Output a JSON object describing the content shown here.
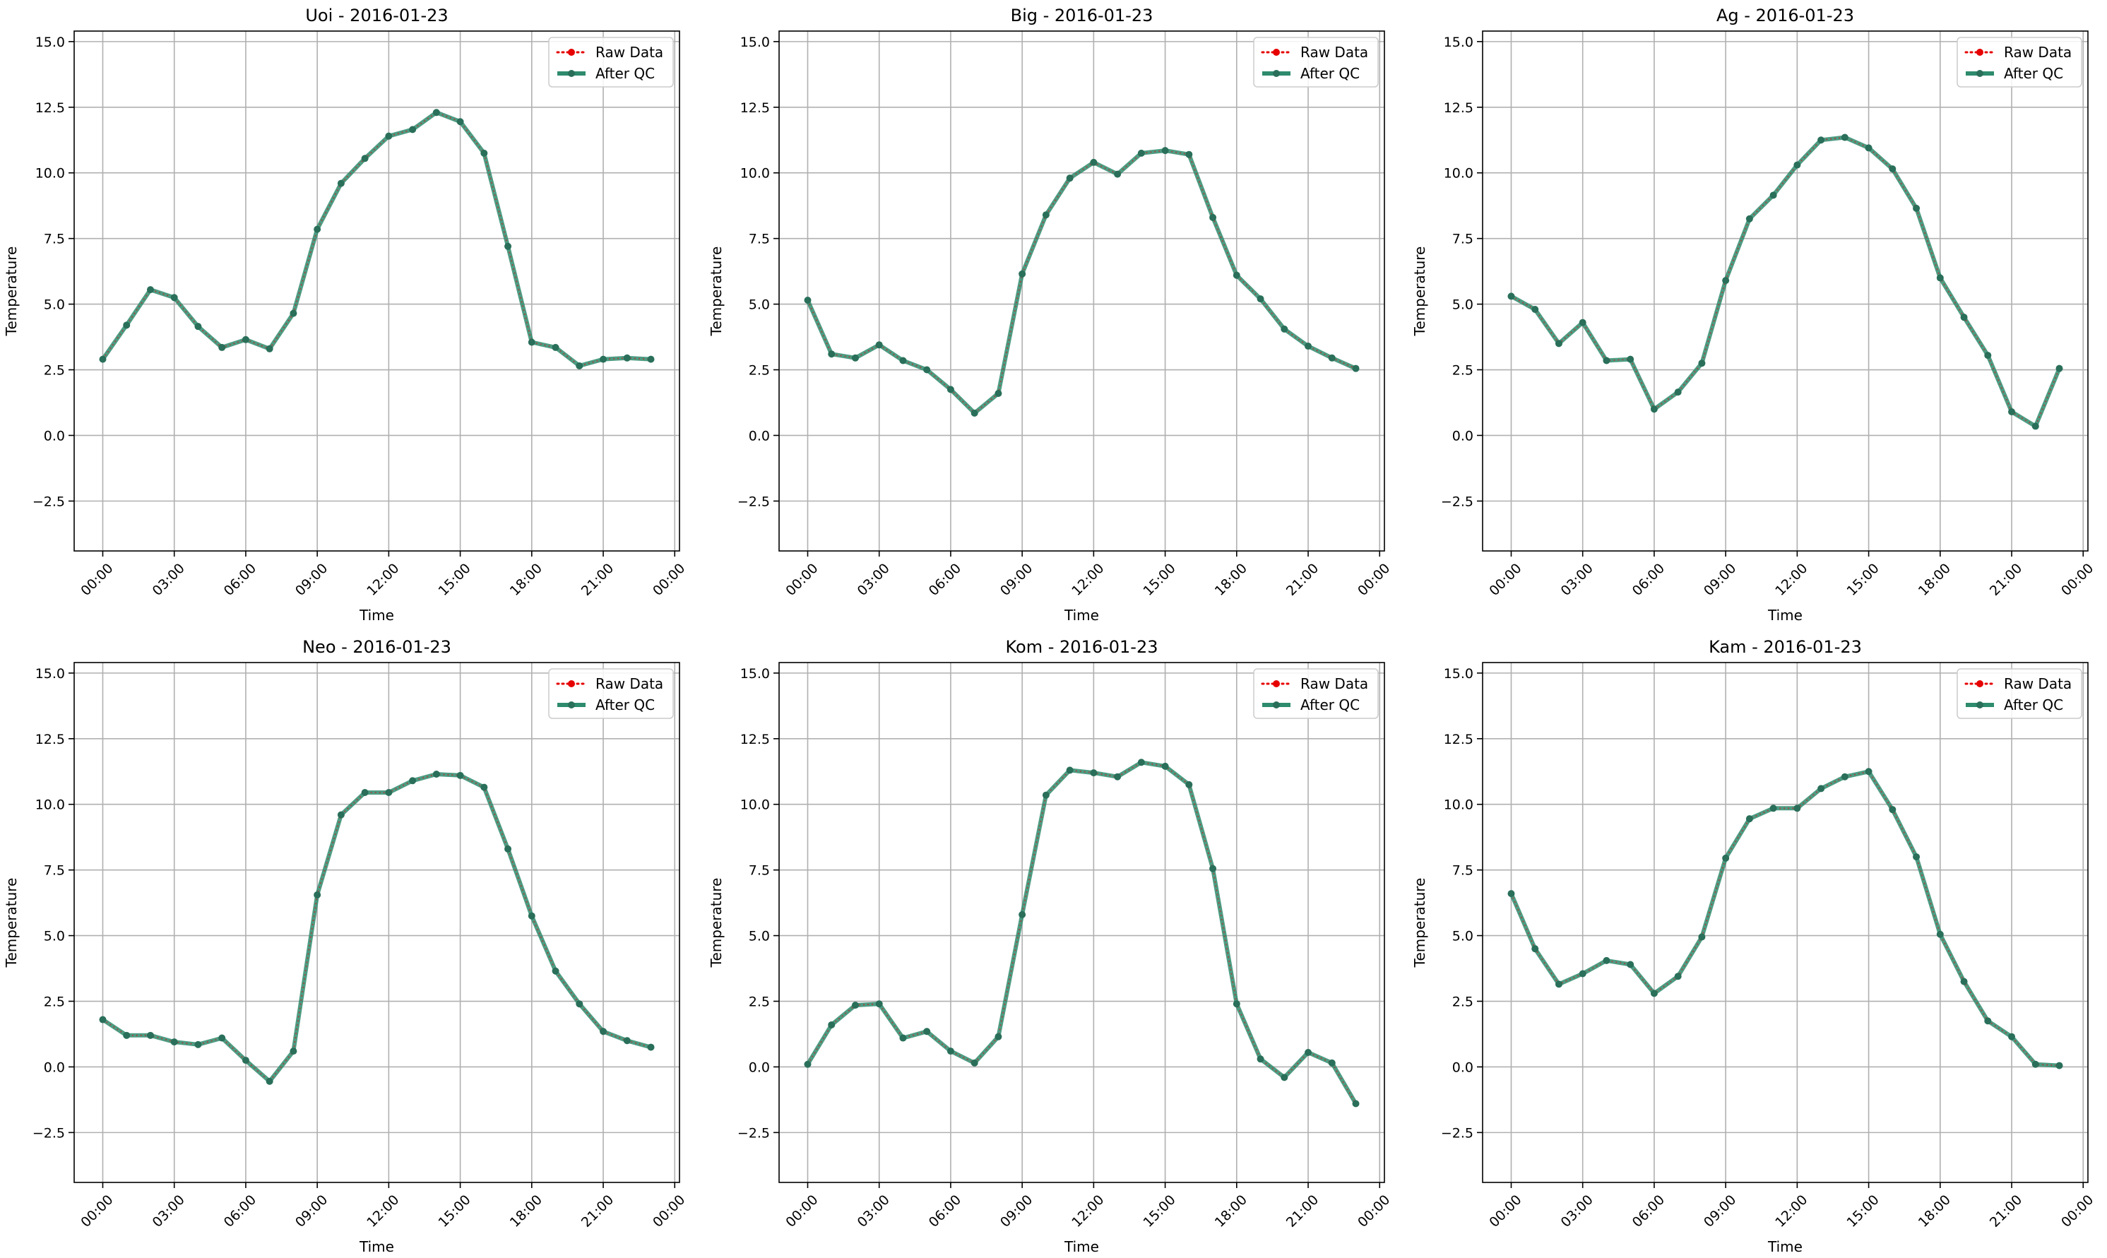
{
  "figure": {
    "xlabel": "Time",
    "ylabel": "Temperature"
  },
  "legend": {
    "position": "top-right",
    "entries": [
      {
        "label": "Raw Data",
        "color": "#e60000",
        "style": "dotted-with-markers"
      },
      {
        "label": "After QC",
        "color": "#2e8b6d",
        "style": "solid-with-markers"
      }
    ]
  },
  "xticks": [
    "00:00",
    "03:00",
    "06:00",
    "09:00",
    "12:00",
    "15:00",
    "18:00",
    "21:00",
    "00:00"
  ],
  "yticks": [
    "−2.5",
    "0.0",
    "2.5",
    "5.0",
    "7.5",
    "10.0",
    "12.5",
    "15.0"
  ],
  "chart_data": [
    {
      "type": "line",
      "title": "Uoi - 2016-01-23",
      "xlabel": "Time",
      "ylabel": "Temperature",
      "x_hours": [
        0,
        1,
        2,
        3,
        4,
        5,
        6,
        7,
        8,
        9,
        10,
        11,
        12,
        13,
        14,
        15,
        16,
        17,
        18,
        19,
        20,
        21,
        22,
        23
      ],
      "xlim": [
        -1.2,
        24.2
      ],
      "ylim": [
        -4.4,
        15.4
      ],
      "grid": true,
      "series": [
        {
          "name": "Raw Data",
          "values": [
            2.9,
            4.2,
            5.55,
            5.25,
            4.15,
            3.35,
            3.65,
            3.3,
            4.65,
            7.85,
            9.6,
            10.55,
            11.4,
            11.65,
            12.3,
            11.95,
            10.75,
            7.2,
            3.55,
            3.35,
            2.65,
            2.9,
            2.95,
            2.9
          ]
        },
        {
          "name": "After QC",
          "values": [
            2.9,
            4.2,
            5.55,
            5.25,
            4.15,
            3.35,
            3.65,
            3.3,
            4.65,
            7.85,
            9.6,
            10.55,
            11.4,
            11.65,
            12.3,
            11.95,
            10.75,
            7.2,
            3.55,
            3.35,
            2.65,
            2.9,
            2.95,
            2.9
          ]
        }
      ]
    },
    {
      "type": "line",
      "title": "Big - 2016-01-23",
      "xlabel": "Time",
      "ylabel": "Temperature",
      "x_hours": [
        0,
        1,
        2,
        3,
        4,
        5,
        6,
        7,
        8,
        9,
        10,
        11,
        12,
        13,
        14,
        15,
        16,
        17,
        18,
        19,
        20,
        21,
        22,
        23
      ],
      "xlim": [
        -1.2,
        24.2
      ],
      "ylim": [
        -4.4,
        15.4
      ],
      "grid": true,
      "series": [
        {
          "name": "Raw Data",
          "values": [
            5.15,
            3.1,
            2.95,
            3.45,
            2.85,
            2.5,
            1.75,
            0.85,
            1.6,
            6.15,
            8.4,
            9.8,
            10.4,
            9.95,
            10.75,
            10.85,
            10.7,
            8.3,
            6.1,
            5.2,
            4.05,
            3.4,
            2.95,
            2.55
          ]
        },
        {
          "name": "After QC",
          "values": [
            5.15,
            3.1,
            2.95,
            3.45,
            2.85,
            2.5,
            1.75,
            0.85,
            1.6,
            6.15,
            8.4,
            9.8,
            10.4,
            9.95,
            10.75,
            10.85,
            10.7,
            8.3,
            6.1,
            5.2,
            4.05,
            3.4,
            2.95,
            2.55
          ]
        }
      ]
    },
    {
      "type": "line",
      "title": "Ag - 2016-01-23",
      "xlabel": "Time",
      "ylabel": "Temperature",
      "x_hours": [
        0,
        1,
        2,
        3,
        4,
        5,
        6,
        7,
        8,
        9,
        10,
        11,
        12,
        13,
        14,
        15,
        16,
        17,
        18,
        19,
        20,
        21,
        22,
        23
      ],
      "xlim": [
        -1.2,
        24.2
      ],
      "ylim": [
        -4.4,
        15.4
      ],
      "grid": true,
      "series": [
        {
          "name": "Raw Data",
          "values": [
            5.3,
            4.8,
            3.5,
            4.3,
            2.85,
            2.9,
            1.0,
            1.65,
            2.75,
            5.9,
            8.25,
            9.15,
            10.3,
            11.25,
            11.35,
            10.95,
            10.15,
            8.65,
            6.0,
            4.5,
            3.05,
            0.9,
            0.35,
            2.55
          ]
        },
        {
          "name": "After QC",
          "values": [
            5.3,
            4.8,
            3.5,
            4.3,
            2.85,
            2.9,
            1.0,
            1.65,
            2.75,
            5.9,
            8.25,
            9.15,
            10.3,
            11.25,
            11.35,
            10.95,
            10.15,
            8.65,
            6.0,
            4.5,
            3.05,
            0.9,
            0.35,
            2.55
          ]
        }
      ]
    },
    {
      "type": "line",
      "title": "Neo - 2016-01-23",
      "xlabel": "Time",
      "ylabel": "Temperature",
      "x_hours": [
        0,
        1,
        2,
        3,
        4,
        5,
        6,
        7,
        8,
        9,
        10,
        11,
        12,
        13,
        14,
        15,
        16,
        17,
        18,
        19,
        20,
        21,
        22,
        23
      ],
      "xlim": [
        -1.2,
        24.2
      ],
      "ylim": [
        -4.4,
        15.4
      ],
      "grid": true,
      "series": [
        {
          "name": "Raw Data",
          "values": [
            1.8,
            1.2,
            1.2,
            0.95,
            0.85,
            1.1,
            0.25,
            -0.55,
            0.6,
            6.55,
            9.6,
            10.45,
            10.45,
            10.9,
            11.15,
            11.1,
            10.65,
            8.3,
            5.75,
            3.65,
            2.4,
            1.35,
            1.0,
            0.75
          ]
        },
        {
          "name": "After QC",
          "values": [
            1.8,
            1.2,
            1.2,
            0.95,
            0.85,
            1.1,
            0.25,
            -0.55,
            0.6,
            6.55,
            9.6,
            10.45,
            10.45,
            10.9,
            11.15,
            11.1,
            10.65,
            8.3,
            5.75,
            3.65,
            2.4,
            1.35,
            1.0,
            0.75
          ]
        }
      ]
    },
    {
      "type": "line",
      "title": "Kom - 2016-01-23",
      "xlabel": "Time",
      "ylabel": "Temperature",
      "x_hours": [
        0,
        1,
        2,
        3,
        4,
        5,
        6,
        7,
        8,
        9,
        10,
        11,
        12,
        13,
        14,
        15,
        16,
        17,
        18,
        19,
        20,
        21,
        22,
        23
      ],
      "xlim": [
        -1.2,
        24.2
      ],
      "ylim": [
        -4.4,
        15.4
      ],
      "grid": true,
      "series": [
        {
          "name": "Raw Data",
          "values": [
            0.1,
            1.6,
            2.35,
            2.4,
            1.1,
            1.35,
            0.6,
            0.15,
            1.15,
            5.8,
            10.35,
            11.3,
            11.2,
            11.05,
            11.6,
            11.45,
            10.75,
            7.55,
            2.4,
            0.3,
            -0.4,
            0.55,
            0.15,
            -1.4
          ]
        },
        {
          "name": "After QC",
          "values": [
            0.1,
            1.6,
            2.35,
            2.4,
            1.1,
            1.35,
            0.6,
            0.15,
            1.15,
            5.8,
            10.35,
            11.3,
            11.2,
            11.05,
            11.6,
            11.45,
            10.75,
            7.55,
            2.4,
            0.3,
            -0.4,
            0.55,
            0.15,
            -1.4
          ]
        }
      ]
    },
    {
      "type": "line",
      "title": "Kam - 2016-01-23",
      "xlabel": "Time",
      "ylabel": "Temperature",
      "x_hours": [
        0,
        1,
        2,
        3,
        4,
        5,
        6,
        7,
        8,
        9,
        10,
        11,
        12,
        13,
        14,
        15,
        16,
        17,
        18,
        19,
        20,
        21,
        22,
        23
      ],
      "xlim": [
        -1.2,
        24.2
      ],
      "ylim": [
        -4.4,
        15.4
      ],
      "grid": true,
      "series": [
        {
          "name": "Raw Data",
          "values": [
            6.6,
            4.5,
            3.15,
            3.55,
            4.05,
            3.9,
            2.8,
            3.45,
            4.95,
            7.95,
            9.45,
            9.85,
            9.85,
            10.6,
            11.05,
            11.25,
            9.8,
            8.0,
            5.05,
            3.25,
            1.75,
            1.15,
            0.1,
            0.05
          ]
        },
        {
          "name": "After QC",
          "values": [
            6.6,
            4.5,
            3.15,
            3.55,
            4.05,
            3.9,
            2.8,
            3.45,
            4.95,
            7.95,
            9.45,
            9.85,
            9.85,
            10.6,
            11.05,
            11.25,
            9.8,
            8.0,
            5.05,
            3.25,
            1.75,
            1.15,
            0.1,
            0.05
          ]
        }
      ]
    }
  ]
}
